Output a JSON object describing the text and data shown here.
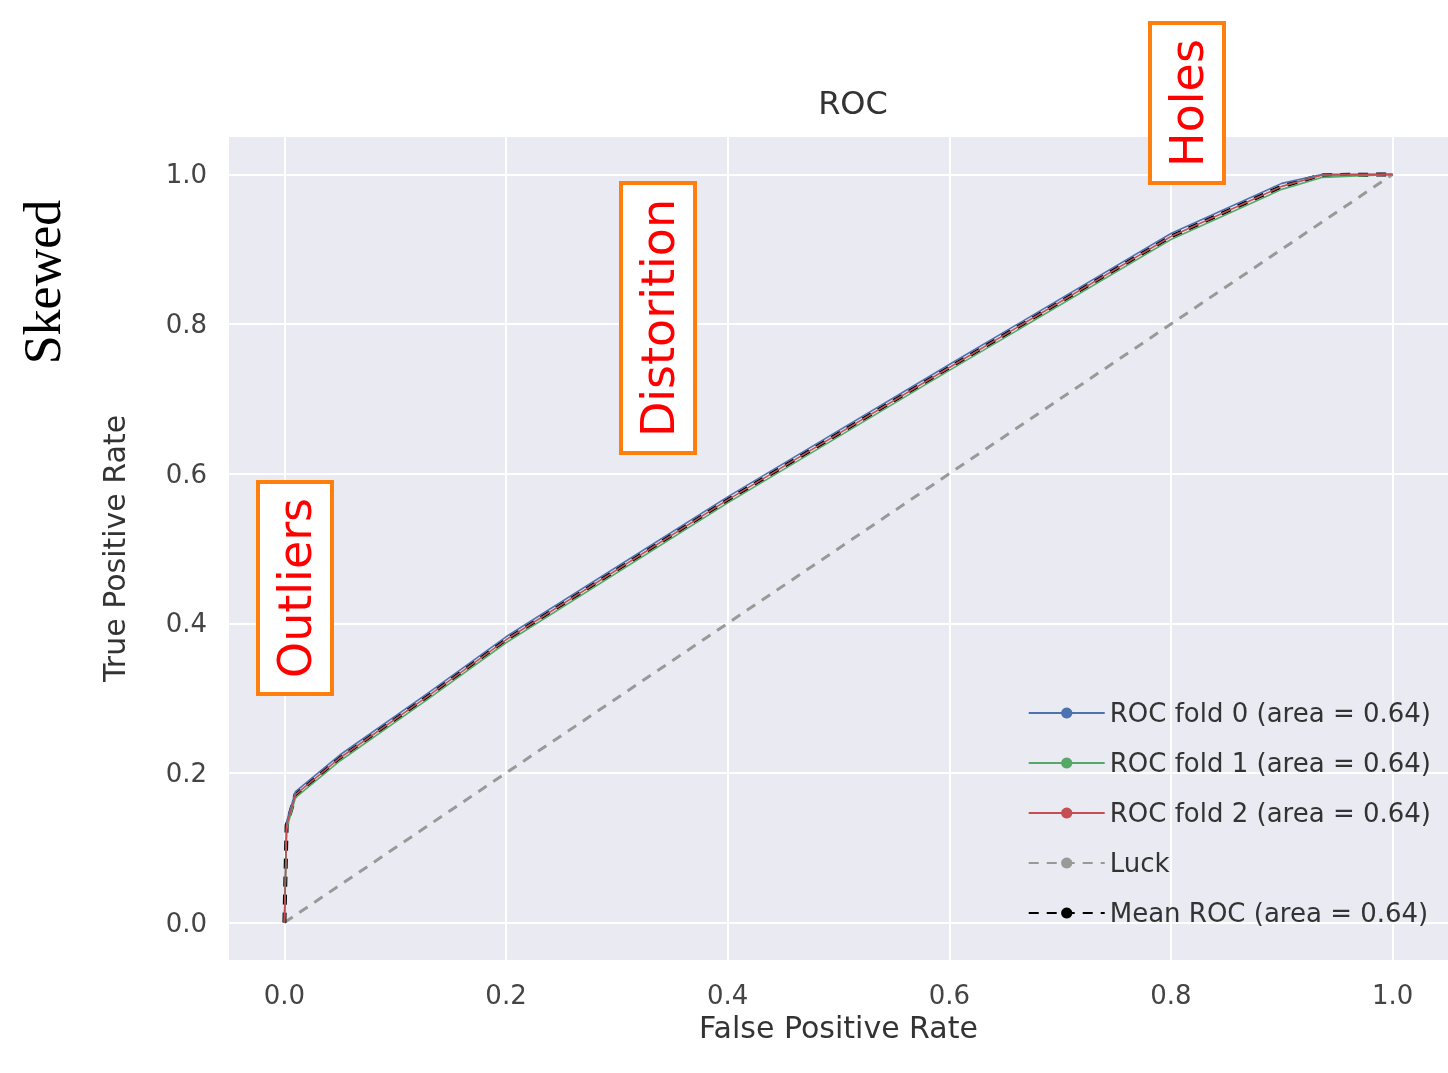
{
  "chart_data": {
    "type": "line",
    "title": "ROC",
    "xlabel": "False Positive Rate",
    "ylabel": "True Positive Rate",
    "x": [
      0,
      0.002,
      0.01,
      0.05,
      0.127,
      0.2,
      0.4,
      0.6,
      0.8,
      0.9,
      0.936,
      1
    ],
    "series": [
      {
        "name": "ROC fold 0 (area = 0.64)",
        "color": "#4c72b0",
        "values": [
          0,
          0.135,
          0.175,
          0.224,
          0.304,
          0.382,
          0.569,
          0.746,
          0.921,
          0.988,
          1,
          1
        ]
      },
      {
        "name": "ROC fold 1 (area = 0.64)",
        "color": "#55a868",
        "values": [
          0,
          0.125,
          0.167,
          0.216,
          0.296,
          0.374,
          0.561,
          0.738,
          0.913,
          0.98,
          0.996,
          1
        ]
      },
      {
        "name": "ROC fold 2 (area = 0.64)",
        "color": "#c44e52",
        "values": [
          0,
          0.13,
          0.171,
          0.22,
          0.3,
          0.378,
          0.565,
          0.742,
          0.917,
          0.984,
          0.999,
          1
        ]
      },
      {
        "name": "Luck",
        "color": "#999999",
        "line_style": "dashed",
        "x": [
          0,
          1
        ],
        "values": [
          0,
          1
        ]
      },
      {
        "name": "Mean ROC (area = 0.64)",
        "color": "#000000",
        "line_style": "dashed",
        "values": [
          0,
          0.13,
          0.171,
          0.22,
          0.3,
          0.378,
          0.565,
          0.742,
          0.917,
          0.984,
          0.999,
          1
        ]
      }
    ],
    "xlim": [
      -0.05,
      1.05
    ],
    "ylim": [
      -0.05,
      1.05
    ],
    "xticks": [
      {
        "value": 0,
        "label": "0.0"
      },
      {
        "value": 0.2,
        "label": "0.2"
      },
      {
        "value": 0.4,
        "label": "0.4"
      },
      {
        "value": 0.6,
        "label": "0.6"
      },
      {
        "value": 0.8,
        "label": "0.8"
      },
      {
        "value": 1,
        "label": "1.0"
      }
    ],
    "yticks": [
      {
        "value": 0,
        "label": "0.0"
      },
      {
        "value": 0.2,
        "label": "0.2"
      },
      {
        "value": 0.4,
        "label": "0.4"
      },
      {
        "value": 0.6,
        "label": "0.6"
      },
      {
        "value": 0.8,
        "label": "0.8"
      },
      {
        "value": 1,
        "label": "1.0"
      }
    ],
    "grid": true,
    "legend": "bottom right",
    "marker": "none",
    "annotations": [
      "Skewed",
      "Outliers",
      "Distorition",
      "Holes"
    ]
  }
}
